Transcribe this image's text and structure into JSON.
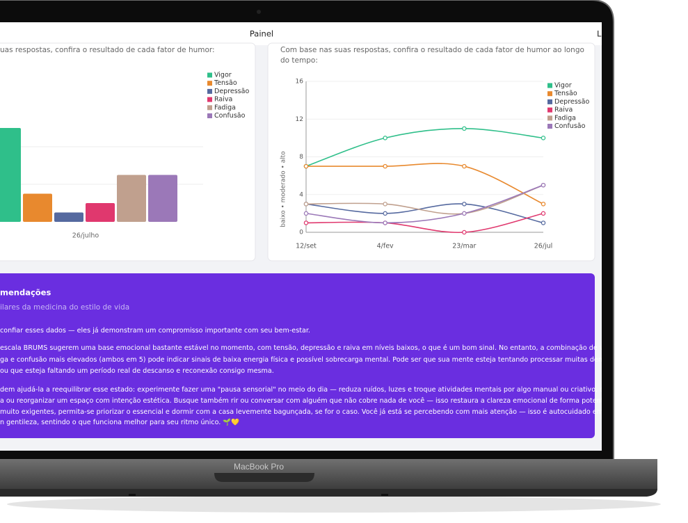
{
  "header": {
    "title": "Painel",
    "user": "LS"
  },
  "device_label": "MacBook Pro",
  "chart_data": [
    {
      "type": "bar",
      "subtitle": "uas respostas, confira o resultado de cada fator de humor:",
      "categories": [
        "26/julho"
      ],
      "series": [
        {
          "name": "Vigor",
          "color": "#2fbf8a",
          "values": [
            10
          ]
        },
        {
          "name": "Tensão",
          "color": "#e8892e",
          "values": [
            3
          ]
        },
        {
          "name": "Depressão",
          "color": "#55699f",
          "values": [
            1
          ]
        },
        {
          "name": "Raiva",
          "color": "#e0386e",
          "values": [
            2
          ]
        },
        {
          "name": "Fadiga",
          "color": "#c0a08e",
          "values": [
            5
          ]
        },
        {
          "name": "Confusão",
          "color": "#9b78b8",
          "values": [
            5
          ]
        }
      ],
      "ylim": [
        0,
        16
      ],
      "yticks": [
        4,
        8
      ],
      "grid": true,
      "legend": "top-right"
    },
    {
      "type": "line",
      "subtitle": [
        "Com base nas suas respostas, confira o resultado de cada fator de humor ao longo",
        "do tempo:"
      ],
      "y_label": "baixo • moderado • alto",
      "categories": [
        "12/set",
        "4/fev",
        "23/mar",
        "26/jul"
      ],
      "series": [
        {
          "name": "Vigor",
          "color": "#2fbf8a",
          "values": [
            7,
            10,
            11,
            10
          ]
        },
        {
          "name": "Tensão",
          "color": "#e8892e",
          "values": [
            7,
            7,
            7,
            3
          ]
        },
        {
          "name": "Depressão",
          "color": "#55699f",
          "values": [
            3,
            2,
            3,
            1
          ]
        },
        {
          "name": "Raiva",
          "color": "#e0386e",
          "values": [
            1,
            1,
            0,
            2
          ]
        },
        {
          "name": "Fadiga",
          "color": "#c0a08e",
          "values": [
            3,
            3,
            2,
            5
          ]
        },
        {
          "name": "Confusão",
          "color": "#9b78b8",
          "values": [
            2,
            1,
            2,
            5
          ]
        }
      ],
      "ylim": [
        0,
        16
      ],
      "yticks": [
        0,
        4,
        8,
        12,
        16
      ],
      "grid": true,
      "legend": "top-right"
    }
  ],
  "recommendations": {
    "title": "mendações",
    "subtitle": "ilares da medicina do estilo de vida",
    "lines": [
      "confiar esses dados — eles já demonstram um compromisso importante com seu bem-estar.",
      "escala BRUMS sugerem uma base emocional bastante estável no momento, com tensão, depressão e raiva em níveis baixos, o que é um bom sinal. No entanto, a combinação de vigor",
      "ga e confusão mais elevados (ambos em 5) pode indicar sinais de baixa energia física e possível sobrecarga mental. Pode ser que sua mente esteja tentando processar muitas demandas",
      "ou que esteja faltando um período real de descanso e reconexão consigo mesma.",
      "dem ajudá-la a reequilibrar esse estado: experimente fazer uma \"pausa sensorial\" no meio do dia — reduza ruídos, luzes e troque atividades mentais por algo manual ou criativo, como",
      "a ou reorganizar um espaço com intenção estética. Busque também rir ou conversar com alguém que não cobre nada de você — isso restaura a clareza emocional de forma potente. Se",
      "muito exigentes, permita-se priorizar o essencial e dormir com a casa levemente bagunçada, se for o caso. Você já está se percebendo com mais atenção — isso é autocuidado em",
      "n gentileza, sentindo o que funciona melhor para seu ritmo único. 🌱💛"
    ]
  }
}
